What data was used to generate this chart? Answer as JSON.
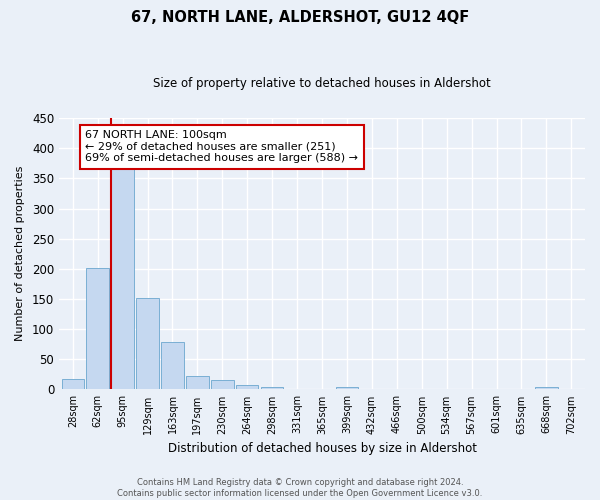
{
  "title": "67, NORTH LANE, ALDERSHOT, GU12 4QF",
  "subtitle": "Size of property relative to detached houses in Aldershot",
  "bar_labels": [
    "28sqm",
    "62sqm",
    "95sqm",
    "129sqm",
    "163sqm",
    "197sqm",
    "230sqm",
    "264sqm",
    "298sqm",
    "331sqm",
    "365sqm",
    "399sqm",
    "432sqm",
    "466sqm",
    "500sqm",
    "534sqm",
    "567sqm",
    "601sqm",
    "635sqm",
    "668sqm",
    "702sqm"
  ],
  "bar_values": [
    18,
    201,
    365,
    152,
    78,
    22,
    15,
    7,
    4,
    0,
    0,
    4,
    0,
    0,
    0,
    0,
    0,
    0,
    0,
    4,
    0
  ],
  "bar_color": "#c5d8f0",
  "bar_edgecolor": "#7aafd4",
  "vline_color": "#cc0000",
  "ylim": [
    0,
    450
  ],
  "yticks": [
    0,
    50,
    100,
    150,
    200,
    250,
    300,
    350,
    400,
    450
  ],
  "ylabel": "Number of detached properties",
  "xlabel": "Distribution of detached houses by size in Aldershot",
  "annotation_title": "67 NORTH LANE: 100sqm",
  "annotation_line1": "← 29% of detached houses are smaller (251)",
  "annotation_line2": "69% of semi-detached houses are larger (588) →",
  "annotation_box_color": "#ffffff",
  "annotation_box_edgecolor": "#cc0000",
  "footer_line1": "Contains HM Land Registry data © Crown copyright and database right 2024.",
  "footer_line2": "Contains public sector information licensed under the Open Government Licence v3.0.",
  "bg_color": "#eaf0f8",
  "plot_bg_color": "#eaf0f8",
  "grid_color": "#ffffff"
}
